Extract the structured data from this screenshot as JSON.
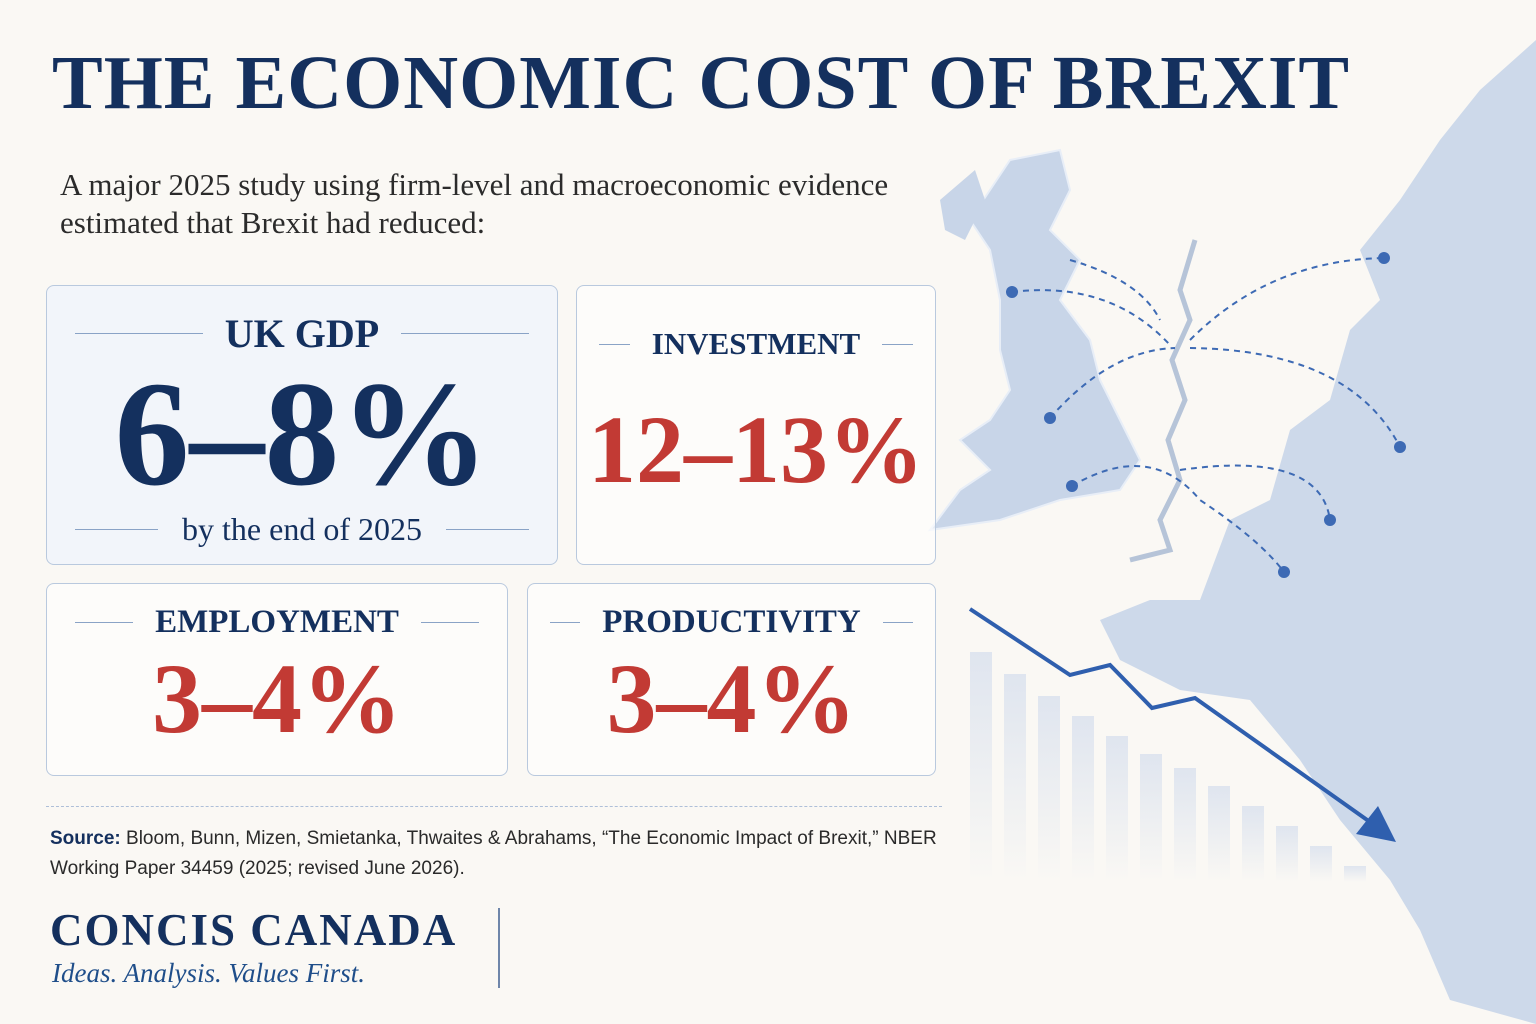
{
  "header": {
    "title": "THE ECONOMIC COST OF BREXIT",
    "intro": "A major 2025 study using firm-level and macroeconomic evidence estimated that Brexit had reduced:"
  },
  "cards": [
    {
      "label": "UK GDP",
      "value": "6–8%",
      "note": "by the end of 2025"
    },
    {
      "label": "INVESTMENT",
      "value": "12–13%"
    },
    {
      "label": "EMPLOYMENT",
      "value": "3–4%"
    },
    {
      "label": "PRODUCTIVITY",
      "value": "3–4%"
    }
  ],
  "source": {
    "label": "Source:",
    "text": "Bloom, Bunn, Mizen, Smietanka, Thwaites & Abrahams, “The Economic Impact of Brexit,” NBER Working Paper 34459 (2025; revised June 2026)."
  },
  "brand": {
    "name": "CONCIS CANADA",
    "tagline": "Ideas. Analysis. Values First."
  }
}
